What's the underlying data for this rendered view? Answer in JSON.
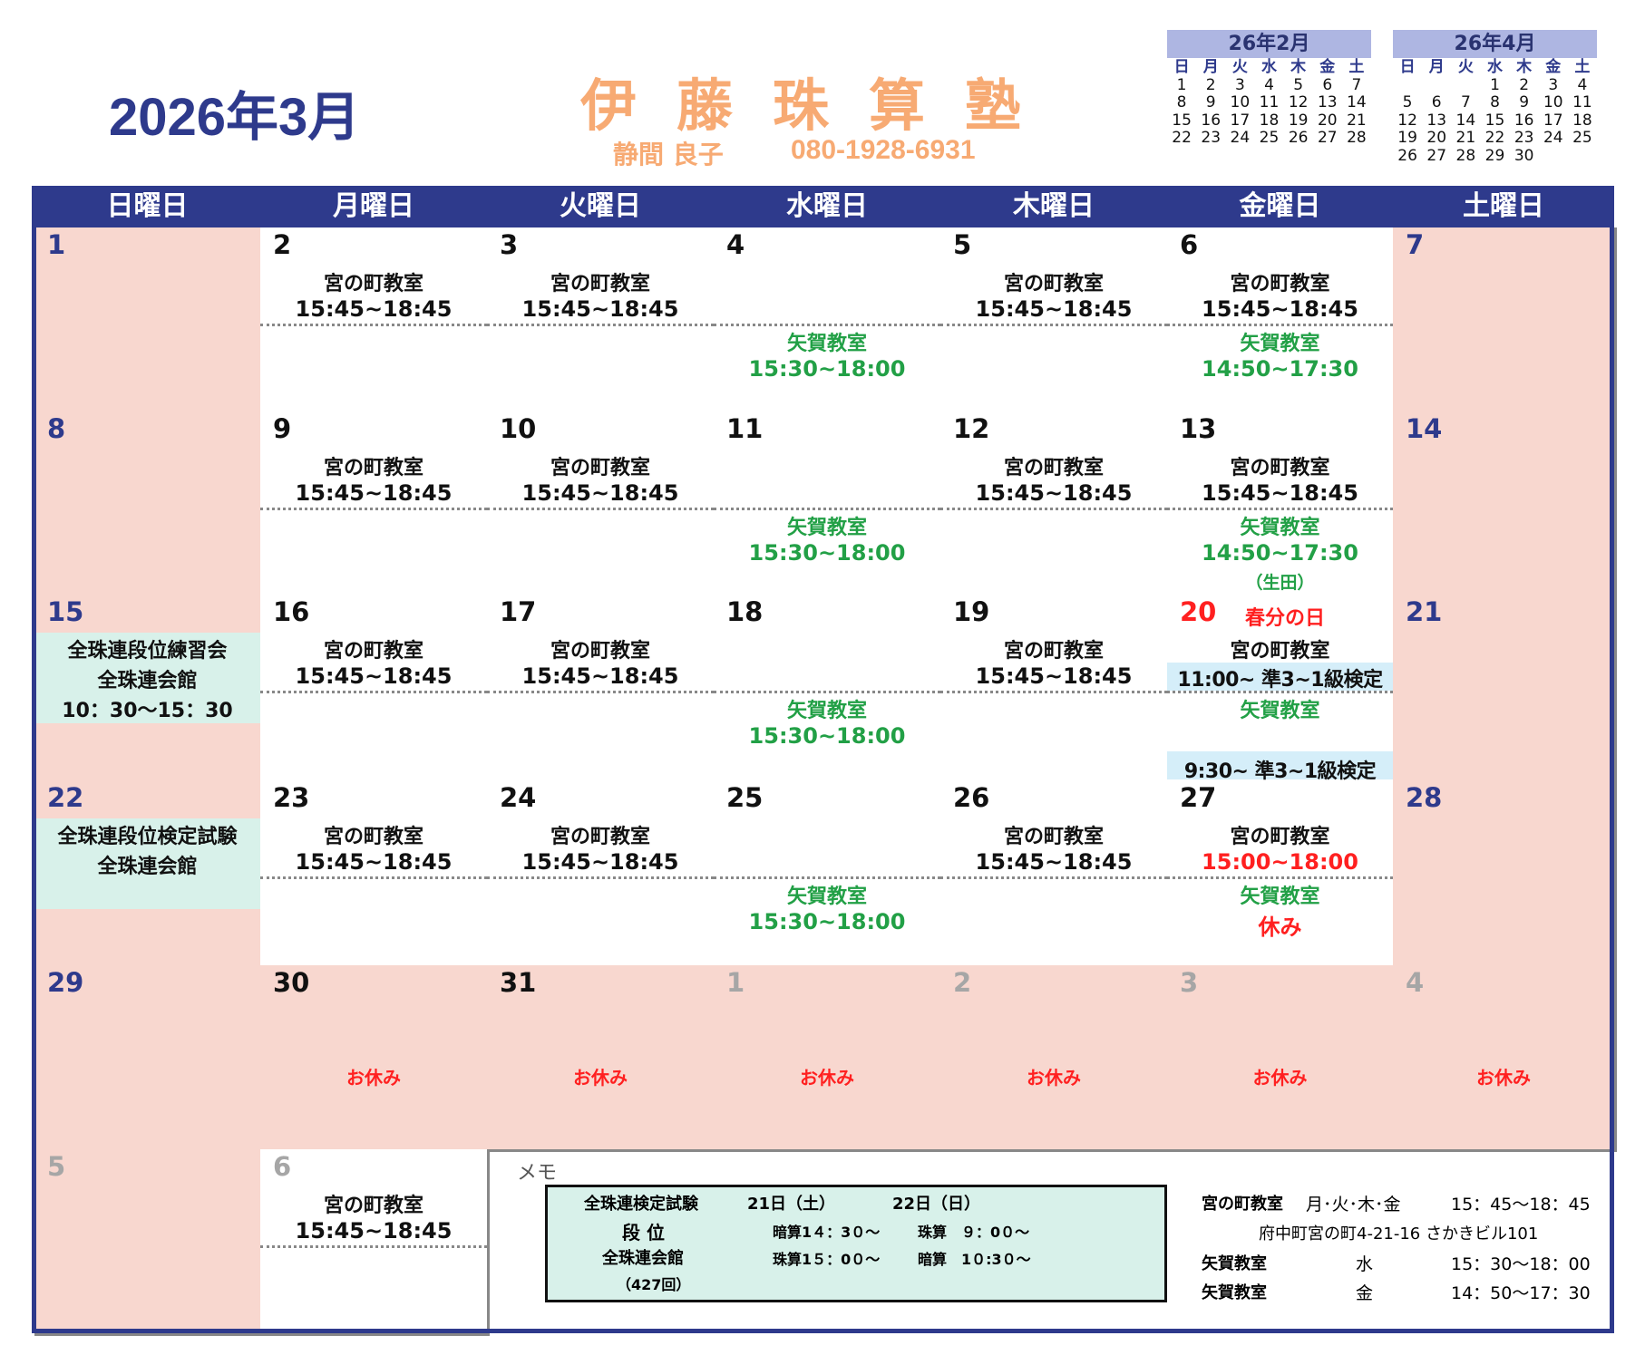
{
  "header": {
    "title": "2026年3月",
    "school": "伊藤珠算塾",
    "teacher": "静間 良子",
    "phone": "080-1928-6931",
    "school_color": "#f7aa73",
    "accent": "#2e3a8c"
  },
  "mini_calendars": [
    {
      "title": "26年2月",
      "weekdays": [
        "日",
        "月",
        "火",
        "水",
        "木",
        "金",
        "土"
      ],
      "weeks": [
        [
          "1",
          "2",
          "3",
          "4",
          "5",
          "6",
          "7"
        ],
        [
          "8",
          "9",
          "10",
          "11",
          "12",
          "13",
          "14"
        ],
        [
          "15",
          "16",
          "17",
          "18",
          "19",
          "20",
          "21"
        ],
        [
          "22",
          "23",
          "24",
          "25",
          "26",
          "27",
          "28"
        ]
      ]
    },
    {
      "title": "26年4月",
      "weekdays": [
        "日",
        "月",
        "火",
        "水",
        "木",
        "金",
        "土"
      ],
      "weeks": [
        [
          "",
          "",
          "",
          "1",
          "2",
          "3",
          "4"
        ],
        [
          "5",
          "6",
          "7",
          "8",
          "9",
          "10",
          "11"
        ],
        [
          "12",
          "13",
          "14",
          "15",
          "16",
          "17",
          "18"
        ],
        [
          "19",
          "20",
          "21",
          "22",
          "23",
          "24",
          "25"
        ],
        [
          "26",
          "27",
          "28",
          "29",
          "30",
          "",
          ""
        ]
      ]
    }
  ],
  "weekdays": [
    "日曜日",
    "月曜日",
    "火曜日",
    "水曜日",
    "木曜日",
    "金曜日",
    "土曜日"
  ],
  "colors": {
    "weekend": "#2e3a8c",
    "weekday": "#111111",
    "other_month": "#a6a6a6",
    "holiday": "#ff2020",
    "yaga": "#22a046",
    "pink": "#f8d7cf",
    "teal": "#d8f1ea"
  },
  "weeks": [
    [
      {
        "day": "1",
        "kind": "weekend",
        "pink": true
      },
      {
        "day": "2",
        "top": [
          "宮の町教室",
          "15:45~18:45"
        ]
      },
      {
        "day": "3",
        "top": [
          "宮の町教室",
          "15:45~18:45"
        ]
      },
      {
        "day": "4",
        "bottom": [
          "矢賀教室",
          "15:30~18:00"
        ]
      },
      {
        "day": "5",
        "top": [
          "宮の町教室",
          "15:45~18:45"
        ]
      },
      {
        "day": "6",
        "top": [
          "宮の町教室",
          "15:45~18:45"
        ],
        "bottom": [
          "矢賀教室",
          "14:50~17:30"
        ]
      },
      {
        "day": "7",
        "kind": "weekend",
        "pink": true
      }
    ],
    [
      {
        "day": "8",
        "kind": "weekend",
        "pink": true
      },
      {
        "day": "9",
        "top": [
          "宮の町教室",
          "15:45~18:45"
        ]
      },
      {
        "day": "10",
        "top": [
          "宮の町教室",
          "15:45~18:45"
        ]
      },
      {
        "day": "11",
        "bottom": [
          "矢賀教室",
          "15:30~18:00"
        ]
      },
      {
        "day": "12",
        "top": [
          "宮の町教室",
          "15:45~18:45"
        ]
      },
      {
        "day": "13",
        "top": [
          "宮の町教室",
          "15:45~18:45"
        ],
        "bottom": [
          "矢賀教室",
          "14:50~17:30",
          "（生田）"
        ]
      },
      {
        "day": "14",
        "kind": "weekend",
        "pink": true
      }
    ],
    [
      {
        "day": "15",
        "kind": "weekend",
        "pink": true,
        "event": [
          "全珠連段位練習会",
          "全珠連会館",
          "10：30〜15：30"
        ]
      },
      {
        "day": "16",
        "top": [
          "宮の町教室",
          "15:45~18:45"
        ]
      },
      {
        "day": "17",
        "top": [
          "宮の町教室",
          "15:45~18:45"
        ]
      },
      {
        "day": "18",
        "bottom": [
          "矢賀教室",
          "15:30~18:00"
        ]
      },
      {
        "day": "19",
        "top": [
          "宮の町教室",
          "15:45~18:45"
        ]
      },
      {
        "day": "20",
        "kind": "holiday",
        "holiday": "春分の日",
        "top": [
          "宮の町教室",
          "11:00~ 準3~1級検定"
        ],
        "bottom": [
          "矢賀教室"
        ],
        "footer": "9:30~ 準3~1級検定"
      },
      {
        "day": "21",
        "kind": "weekend",
        "pink": true
      }
    ],
    [
      {
        "day": "22",
        "kind": "weekend",
        "pink": true,
        "event": [
          "全珠連段位検定試験",
          "全珠連会館"
        ]
      },
      {
        "day": "23",
        "top": [
          "宮の町教室",
          "15:45~18:45"
        ]
      },
      {
        "day": "24",
        "top": [
          "宮の町教室",
          "15:45~18:45"
        ]
      },
      {
        "day": "25",
        "bottom": [
          "矢賀教室",
          "15:30~18:00"
        ]
      },
      {
        "day": "26",
        "top": [
          "宮の町教室",
          "15:45~18:45"
        ]
      },
      {
        "day": "27",
        "top": [
          "宮の町教室",
          "15:00~18:00"
        ],
        "bottom": [
          "矢賀教室",
          "休み"
        ],
        "red_second": true
      },
      {
        "day": "28",
        "kind": "weekend",
        "pink": true
      }
    ],
    [
      {
        "day": "29",
        "kind": "weekend",
        "pink": true
      },
      {
        "day": "30",
        "pink": true,
        "off": "お休み"
      },
      {
        "day": "31",
        "pink": true,
        "off": "お休み"
      },
      {
        "day": "1",
        "kind": "other",
        "pink": true,
        "off": "お休み"
      },
      {
        "day": "2",
        "kind": "other",
        "pink": true,
        "off": "お休み"
      },
      {
        "day": "3",
        "kind": "other",
        "pink": true,
        "off": "お休み"
      },
      {
        "day": "4",
        "kind": "other",
        "pink": true,
        "off": "お休み"
      }
    ],
    [
      {
        "day": "5",
        "kind": "other",
        "pink": true
      },
      {
        "day": "6",
        "kind": "other",
        "top": [
          "宮の町教室",
          "15:45~18:45"
        ]
      }
    ]
  ],
  "memo": {
    "label": "メモ",
    "box": {
      "title": "全珠連検定試験",
      "day1": "21日（土）",
      "day2": "22日（日）",
      "grade": "段 位",
      "d1_a": "暗算1４：3０〜",
      "d2_a": "珠算　９：0０〜",
      "venue": "全珠連会館",
      "d1_b": "珠算1５：0０〜",
      "d2_b": "暗算　1０:3０〜",
      "count": "（427回）"
    },
    "info": [
      {
        "name": "宮の町教室",
        "days": "月･火･木･金",
        "time": "15：45〜18：45"
      },
      {
        "address": "府中町宮の町4-21-16 さかきビル101"
      },
      {
        "name": "矢賀教室",
        "days": "水",
        "time": "15：30〜18：00"
      },
      {
        "name": "矢賀教室",
        "days": "金",
        "time": "14：50〜17：30"
      }
    ]
  }
}
